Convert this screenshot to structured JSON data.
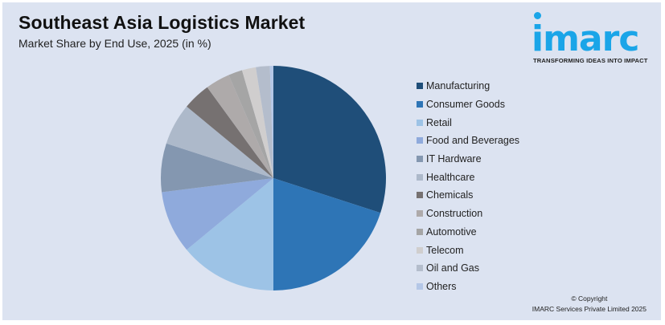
{
  "header": {
    "title": "Southeast Asia Logistics Market",
    "subtitle": "Market Share by End Use, 2025 (in %)"
  },
  "logo": {
    "wordmark": "imarc",
    "tagline": "TRANSFORMING IDEAS INTO IMPACT",
    "color": "#1aa5e8"
  },
  "footer": {
    "copyright_line1": "© Copyright",
    "copyright_line2": "IMARC Services Private Limited 2025"
  },
  "chart_data": {
    "type": "pie",
    "title": "Southeast Asia Logistics Market",
    "subtitle": "Market Share by End Use, 2025 (in %)",
    "start_angle": "12 o'clock, clockwise",
    "legend_position": "right",
    "categories": [
      "Manufacturing",
      "Consumer Goods",
      "Retail",
      "Food and Beverages",
      "IT Hardware",
      "Healthcare",
      "Chemicals",
      "Construction",
      "Automotive",
      "Telecom",
      "Oil and Gas",
      "Others"
    ],
    "values": [
      30,
      20,
      14,
      9,
      7,
      6,
      4,
      3.5,
      2,
      2,
      2,
      0.5
    ],
    "colors": [
      "#1f4e79",
      "#2e75b6",
      "#9dc3e6",
      "#8faadc",
      "#8497b0",
      "#adb9ca",
      "#767171",
      "#aeaaaa",
      "#a5a5a5",
      "#d0cece",
      "#b4bdcc",
      "#b4c7e7"
    ]
  }
}
